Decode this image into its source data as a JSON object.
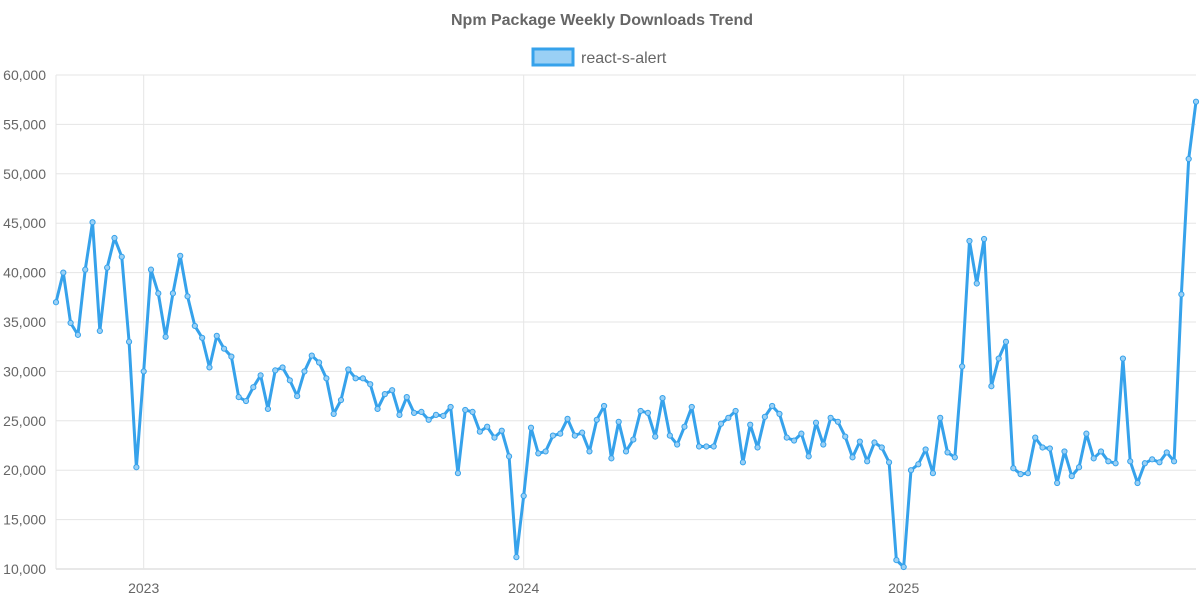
{
  "chart_data": {
    "type": "line",
    "title": "Npm Package Weekly Downloads Trend",
    "xlabel": "",
    "ylabel": "",
    "ylim": [
      10000,
      60000
    ],
    "y_ticks": [
      "10,000",
      "15,000",
      "20,000",
      "25,000",
      "30,000",
      "35,000",
      "40,000",
      "45,000",
      "50,000",
      "55,000",
      "60,000"
    ],
    "y_tick_values": [
      10000,
      15000,
      20000,
      25000,
      30000,
      35000,
      40000,
      45000,
      50000,
      55000,
      60000
    ],
    "x_ticks": [
      "2023",
      "2024",
      "2025"
    ],
    "x_tick_weeks": [
      12,
      64,
      116
    ],
    "x_range_weeks": [
      0,
      156
    ],
    "grid": true,
    "legend_position": "top-center",
    "colors": {
      "line": "#36a2eb",
      "fill": "#9ad0f5"
    },
    "series": [
      {
        "name": "react-s-alert",
        "values": [
          37000,
          40000,
          34900,
          33700,
          40300,
          45100,
          34100,
          40500,
          43500,
          41600,
          33000,
          20300,
          30000,
          40300,
          37900,
          33500,
          37900,
          41700,
          37600,
          34600,
          33400,
          30400,
          33600,
          32300,
          31500,
          27400,
          27000,
          28400,
          29600,
          26200,
          30100,
          30400,
          29100,
          27500,
          30000,
          31600,
          30900,
          29300,
          25700,
          27100,
          30200,
          29300,
          29300,
          28700,
          26200,
          27700,
          28100,
          25600,
          27400,
          25800,
          25900,
          25100,
          25600,
          25500,
          26400,
          19700,
          26100,
          25900,
          23900,
          24400,
          23300,
          24000,
          21400,
          11200,
          17400,
          24300,
          21700,
          21900,
          23500,
          23700,
          25200,
          23500,
          23800,
          21900,
          25100,
          26500,
          21200,
          24900,
          21900,
          23100,
          26000,
          25800,
          23400,
          27300,
          23500,
          22600,
          24400,
          26400,
          22400,
          22400,
          22400,
          24700,
          25300,
          26000,
          20800,
          24600,
          22300,
          25400,
          26500,
          25700,
          23300,
          23000,
          23700,
          21400,
          24800,
          22600,
          25300,
          24900,
          23400,
          21300,
          22900,
          20900,
          22800,
          22300,
          20800,
          10900,
          10200,
          20000,
          20600,
          22100,
          19700,
          25300,
          21800,
          21300,
          30500,
          43200,
          38900,
          43400,
          28500,
          31300,
          33000,
          20200,
          19600,
          19700,
          23300,
          22300,
          22200,
          18700,
          21900,
          19400,
          20300,
          23700,
          21200,
          21900,
          20900,
          20700,
          31300,
          20900,
          18700,
          20700,
          21100,
          20800,
          21800,
          20900,
          37800,
          51500,
          57300
        ]
      }
    ]
  }
}
